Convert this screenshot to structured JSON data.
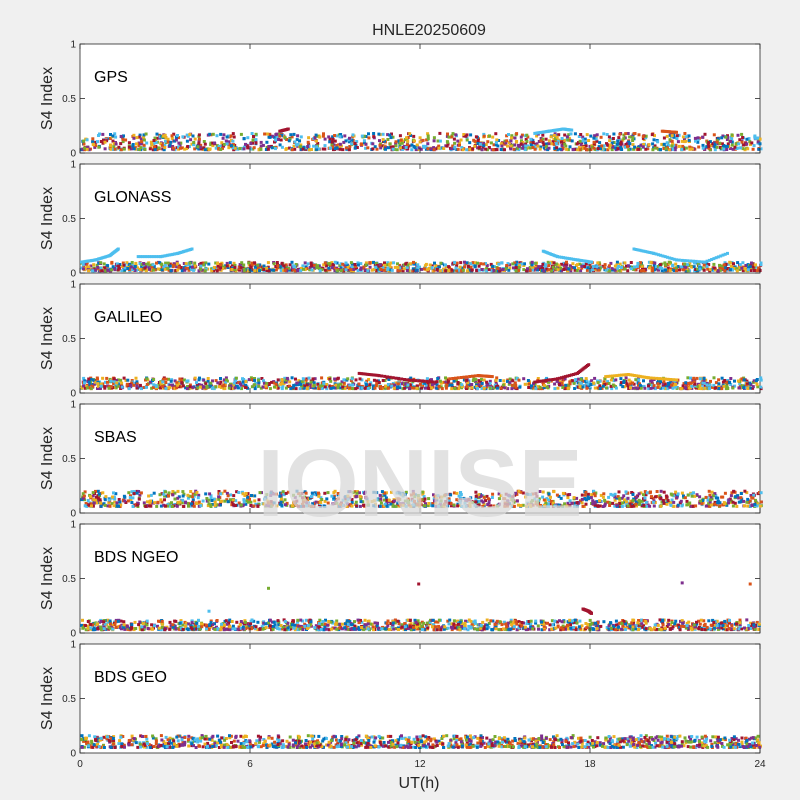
{
  "figure": {
    "title": "HNLE20250609",
    "xlabel": "UT(h)",
    "ylabel": "S4 Index",
    "watermark": "IONISE"
  },
  "chart_data": {
    "type": "scatter",
    "x_range": [
      0,
      24
    ],
    "y_range": [
      0,
      1
    ],
    "x_ticks": [
      "0",
      "6",
      "12",
      "18",
      "24"
    ],
    "y_ticks": [
      "0",
      "0.5",
      "1"
    ],
    "series_colors": [
      "#0072BD",
      "#D95319",
      "#EDB120",
      "#7E2F8E",
      "#77AC30",
      "#4DBEEE",
      "#A2142F"
    ],
    "panels": [
      {
        "label": "GPS",
        "baseline_s4": [
          0.03,
          0.18
        ],
        "features": [
          {
            "color": "#4DBEEE",
            "points": [
              [
                16.0,
                0.18
              ],
              [
                16.5,
                0.2
              ],
              [
                17.0,
                0.22
              ],
              [
                17.3,
                0.21
              ]
            ]
          },
          {
            "color": "#A2142F",
            "points": [
              [
                7.0,
                0.2
              ],
              [
                7.3,
                0.22
              ]
            ]
          },
          {
            "color": "#D95319",
            "points": [
              [
                20.5,
                0.2
              ],
              [
                21.0,
                0.19
              ]
            ]
          }
        ]
      },
      {
        "label": "GLONASS",
        "baseline_s4": [
          0.02,
          0.1
        ],
        "features": [
          {
            "color": "#4DBEEE",
            "points": [
              [
                0.0,
                0.1
              ],
              [
                0.5,
                0.12
              ],
              [
                1.0,
                0.16
              ],
              [
                1.3,
                0.22
              ]
            ]
          },
          {
            "color": "#4DBEEE",
            "points": [
              [
                2.0,
                0.15
              ],
              [
                2.8,
                0.15
              ],
              [
                3.4,
                0.18
              ],
              [
                3.9,
                0.22
              ]
            ]
          },
          {
            "color": "#4DBEEE",
            "points": [
              [
                16.3,
                0.2
              ],
              [
                16.8,
                0.15
              ],
              [
                17.5,
                0.12
              ],
              [
                18.0,
                0.1
              ]
            ]
          },
          {
            "color": "#4DBEEE",
            "points": [
              [
                19.5,
                0.22
              ],
              [
                20.2,
                0.18
              ],
              [
                21.0,
                0.12
              ],
              [
                22.0,
                0.1
              ],
              [
                22.8,
                0.18
              ]
            ]
          }
        ]
      },
      {
        "label": "GALILEO",
        "baseline_s4": [
          0.04,
          0.14
        ],
        "features": [
          {
            "color": "#A2142F",
            "points": [
              [
                9.8,
                0.18
              ],
              [
                10.5,
                0.16
              ],
              [
                11.5,
                0.12
              ],
              [
                12.5,
                0.1
              ]
            ]
          },
          {
            "color": "#A2142F",
            "points": [
              [
                16.0,
                0.1
              ],
              [
                16.8,
                0.13
              ],
              [
                17.5,
                0.18
              ],
              [
                17.9,
                0.26
              ]
            ]
          },
          {
            "color": "#EDB120",
            "points": [
              [
                18.5,
                0.15
              ],
              [
                19.3,
                0.17
              ],
              [
                20.0,
                0.14
              ],
              [
                21.0,
                0.12
              ]
            ]
          },
          {
            "color": "#D95319",
            "points": [
              [
                13.0,
                0.13
              ],
              [
                14.0,
                0.16
              ],
              [
                14.5,
                0.15
              ]
            ]
          }
        ]
      },
      {
        "label": "SBAS",
        "baseline_s4": [
          0.06,
          0.2
        ],
        "features": []
      },
      {
        "label": "BDS NGEO",
        "baseline_s4": [
          0.03,
          0.12
        ],
        "features": [
          {
            "color": "#77AC30",
            "points": [
              [
                6.6,
                0.41
              ]
            ]
          },
          {
            "color": "#A2142F",
            "points": [
              [
                11.9,
                0.45
              ]
            ]
          },
          {
            "color": "#7E2F8E",
            "points": [
              [
                21.2,
                0.46
              ]
            ]
          },
          {
            "color": "#D95319",
            "points": [
              [
                23.6,
                0.45
              ]
            ]
          },
          {
            "color": "#A2142F",
            "points": [
              [
                17.7,
                0.22
              ],
              [
                17.9,
                0.2
              ],
              [
                18.0,
                0.18
              ]
            ]
          },
          {
            "color": "#4DBEEE",
            "points": [
              [
                4.5,
                0.2
              ]
            ]
          }
        ]
      },
      {
        "label": "BDS GEO",
        "baseline_s4": [
          0.05,
          0.16
        ],
        "features": []
      }
    ]
  }
}
